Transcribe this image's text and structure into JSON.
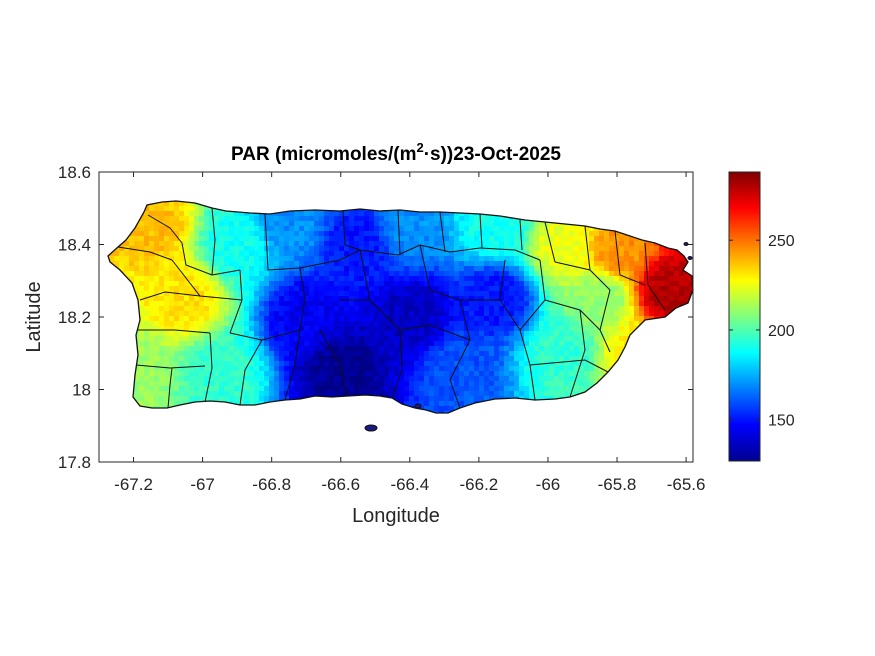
{
  "chart_data": {
    "type": "heatmap",
    "title_parts": {
      "prefix": "PAR (micromoles/(m",
      "superscript": "2",
      "suffix": "·s))23-Oct-2025"
    },
    "xlabel": "Longitude",
    "ylabel": "Latitude",
    "xlim": [
      -67.3,
      -65.58
    ],
    "ylim": [
      17.8,
      18.6
    ],
    "x_ticks": [
      -67.2,
      -67,
      -66.8,
      -66.6,
      -66.4,
      -66.2,
      -66,
      -65.8,
      -65.6
    ],
    "x_tick_labels": [
      "-67.2",
      "-67",
      "-66.8",
      "-66.6",
      "-66.4",
      "-66.2",
      "-66",
      "-65.8",
      "-65.6"
    ],
    "y_ticks": [
      17.8,
      18,
      18.2,
      18.4,
      18.6
    ],
    "y_tick_labels": [
      "17.8",
      "18",
      "18.2",
      "18.4",
      "18.6"
    ],
    "colorbar": {
      "colormap": "jet",
      "range": [
        127,
        288
      ],
      "ticks": [
        150,
        200,
        250
      ],
      "tick_labels": [
        "150",
        "200",
        "250"
      ]
    },
    "field_anchors": [
      {
        "lon": -67.15,
        "lat": 18.45,
        "value": 238
      },
      {
        "lon": -67.05,
        "lat": 18.25,
        "value": 232
      },
      {
        "lon": -67.2,
        "lat": 18.05,
        "value": 212
      },
      {
        "lon": -66.95,
        "lat": 18.05,
        "value": 195
      },
      {
        "lon": -66.9,
        "lat": 18.4,
        "value": 190
      },
      {
        "lon": -66.75,
        "lat": 18.45,
        "value": 170
      },
      {
        "lon": -66.55,
        "lat": 18.4,
        "value": 150
      },
      {
        "lon": -66.6,
        "lat": 18.05,
        "value": 130
      },
      {
        "lon": -66.7,
        "lat": 18.2,
        "value": 145
      },
      {
        "lon": -66.4,
        "lat": 18.2,
        "value": 138
      },
      {
        "lon": -66.4,
        "lat": 18.45,
        "value": 170
      },
      {
        "lon": -66.15,
        "lat": 18.45,
        "value": 190
      },
      {
        "lon": -66.25,
        "lat": 18.05,
        "value": 160
      },
      {
        "lon": -66.15,
        "lat": 18.25,
        "value": 150
      },
      {
        "lon": -65.95,
        "lat": 18.4,
        "value": 225
      },
      {
        "lon": -65.95,
        "lat": 18.1,
        "value": 195
      },
      {
        "lon": -65.85,
        "lat": 18.25,
        "value": 210
      },
      {
        "lon": -65.8,
        "lat": 18.38,
        "value": 245
      },
      {
        "lon": -65.65,
        "lat": 18.27,
        "value": 280
      },
      {
        "lon": -65.75,
        "lat": 18.1,
        "value": 230
      }
    ]
  }
}
